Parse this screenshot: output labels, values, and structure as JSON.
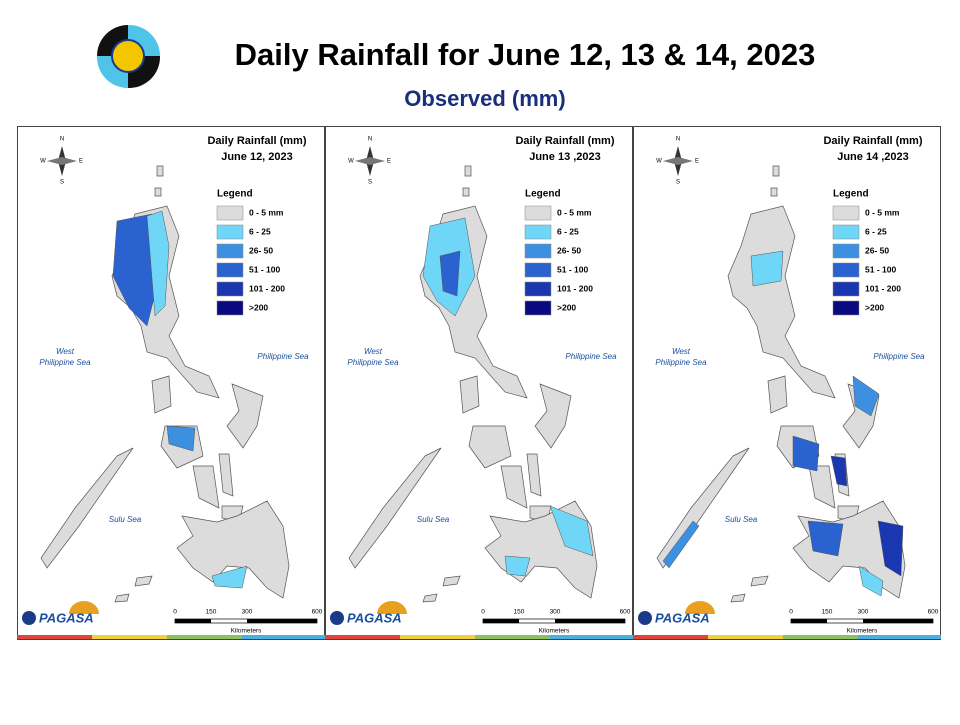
{
  "header": {
    "title": "Daily Rainfall for June 12, 13 & 14, 2023",
    "subtitle": "Observed (mm)"
  },
  "panels": [
    {
      "title": "Daily Rainfall (mm)",
      "date": "June 12, 2023",
      "legend_title": "Legend",
      "legend": [
        {
          "label": "0 - 5 mm",
          "color": "#dcdcdc"
        },
        {
          "label": "6 - 25",
          "color": "#6fd6f7"
        },
        {
          "label": "26- 50",
          "color": "#3d8fe0"
        },
        {
          "label": "51 - 100",
          "color": "#2a62d0"
        },
        {
          "label": "101 - 200",
          "color": "#1a36b0"
        },
        {
          "label": ">200",
          "color": "#0a0a80"
        }
      ],
      "seas": {
        "west": [
          "West",
          "Philippine Sea"
        ],
        "east": "Philippine Sea",
        "south": "Sulu Sea"
      },
      "compass": [
        "N",
        "E",
        "S",
        "W"
      ],
      "scale": {
        "ticks": [
          "0",
          "150",
          "300",
          "600"
        ],
        "unit": "Kilometers"
      },
      "logo": "PAGASA"
    },
    {
      "title": "Daily Rainfall (mm)",
      "date": "June 13 ,2023",
      "legend_title": "Legend",
      "legend": [
        {
          "label": "0 - 5 mm",
          "color": "#dcdcdc"
        },
        {
          "label": "6 - 25",
          "color": "#6fd6f7"
        },
        {
          "label": "26- 50",
          "color": "#3d8fe0"
        },
        {
          "label": "51 - 100",
          "color": "#2a62d0"
        },
        {
          "label": "101 - 200",
          "color": "#1a36b0"
        },
        {
          "label": ">200",
          "color": "#0a0a80"
        }
      ],
      "seas": {
        "west": [
          "West",
          "Philippine Sea"
        ],
        "east": "Philippine Sea",
        "south": "Sulu Sea"
      },
      "compass": [
        "N",
        "E",
        "S",
        "W"
      ],
      "scale": {
        "ticks": [
          "0",
          "150",
          "300",
          "600"
        ],
        "unit": "Kilometers"
      },
      "logo": "PAGASA"
    },
    {
      "title": "Daily Rainfall (mm)",
      "date": "June 14 ,2023",
      "legend_title": "Legend",
      "legend": [
        {
          "label": "0 - 5 mm",
          "color": "#dcdcdc"
        },
        {
          "label": "6 - 25",
          "color": "#6fd6f7"
        },
        {
          "label": "26- 50",
          "color": "#3d8fe0"
        },
        {
          "label": "51 - 100",
          "color": "#2a62d0"
        },
        {
          "label": "101 - 200",
          "color": "#1a36b0"
        },
        {
          "label": ">200",
          "color": "#0a0a80"
        }
      ],
      "seas": {
        "west": [
          "West",
          "Philippine Sea"
        ],
        "east": "Philippine Sea",
        "south": "Sulu Sea"
      },
      "compass": [
        "N",
        "E",
        "S",
        "W"
      ],
      "scale": {
        "ticks": [
          "0",
          "150",
          "300",
          "600"
        ],
        "unit": "Kilometers"
      },
      "logo": "PAGASA"
    }
  ]
}
